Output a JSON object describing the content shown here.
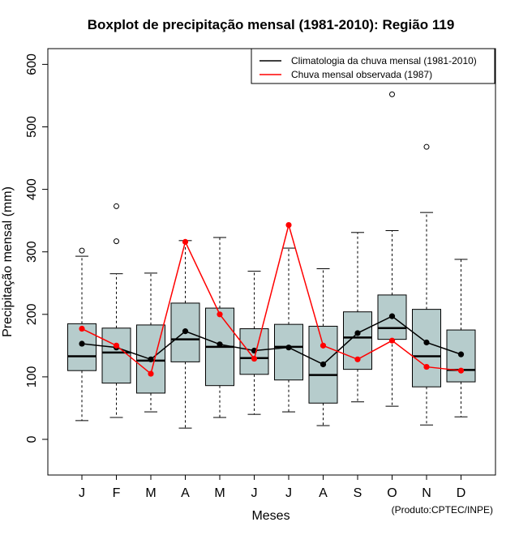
{
  "chart_data": {
    "type": "boxplot",
    "title": "Boxplot de precipitação mensal (1981-2010): Região 119",
    "xlabel": "Meses",
    "ylabel": "Precipitação mensal (mm)",
    "ylim": [
      -55,
      630
    ],
    "yticks": [
      0,
      100,
      200,
      300,
      400,
      500,
      600
    ],
    "categories": [
      "J",
      "F",
      "M",
      "A",
      "M",
      "J",
      "J",
      "A",
      "S",
      "O",
      "N",
      "D"
    ],
    "boxes": [
      {
        "whisker_low": 30,
        "q1": 110,
        "median": 133,
        "q3": 185,
        "whisker_high": 293,
        "outliers": [
          302
        ]
      },
      {
        "whisker_low": 35,
        "q1": 90,
        "median": 139,
        "q3": 178,
        "whisker_high": 265,
        "outliers": [
          317,
          373
        ]
      },
      {
        "whisker_low": 44,
        "q1": 74,
        "median": 126,
        "q3": 183,
        "whisker_high": 266,
        "outliers": []
      },
      {
        "whisker_low": 18,
        "q1": 124,
        "median": 160,
        "q3": 218,
        "whisker_high": 318,
        "outliers": []
      },
      {
        "whisker_low": 35,
        "q1": 86,
        "median": 148,
        "q3": 210,
        "whisker_high": 323,
        "outliers": []
      },
      {
        "whisker_low": 40,
        "q1": 104,
        "median": 130,
        "q3": 177,
        "whisker_high": 269,
        "outliers": []
      },
      {
        "whisker_low": 44,
        "q1": 95,
        "median": 148,
        "q3": 184,
        "whisker_high": 306,
        "outliers": []
      },
      {
        "whisker_low": 22,
        "q1": 58,
        "median": 103,
        "q3": 181,
        "whisker_high": 273,
        "outliers": []
      },
      {
        "whisker_low": 60,
        "q1": 112,
        "median": 163,
        "q3": 204,
        "whisker_high": 331,
        "outliers": []
      },
      {
        "whisker_low": 53,
        "q1": 160,
        "median": 178,
        "q3": 231,
        "whisker_high": 334,
        "outliers": [
          552
        ]
      },
      {
        "whisker_low": 23,
        "q1": 84,
        "median": 133,
        "q3": 208,
        "whisker_high": 363,
        "outliers": [
          468
        ]
      },
      {
        "whisker_low": 36,
        "q1": 92,
        "median": 111,
        "q3": 175,
        "whisker_high": 288,
        "outliers": []
      }
    ],
    "series": [
      {
        "name": "Climatologia da chuva mensal (1981-2010)",
        "color": "#000000",
        "values": [
          153,
          147,
          128,
          173,
          152,
          142,
          147,
          120,
          170,
          197,
          155,
          136
        ]
      },
      {
        "name": "Chuva mensal observada (1987)",
        "color": "#ff0000",
        "values": [
          177,
          150,
          105,
          316,
          200,
          129,
          343,
          150,
          128,
          158,
          116,
          110
        ]
      }
    ],
    "box_fill": "#b6cccc",
    "legend_position": "top-right",
    "grid": false,
    "credit": "(Produto:CPTEC/INPE)"
  }
}
